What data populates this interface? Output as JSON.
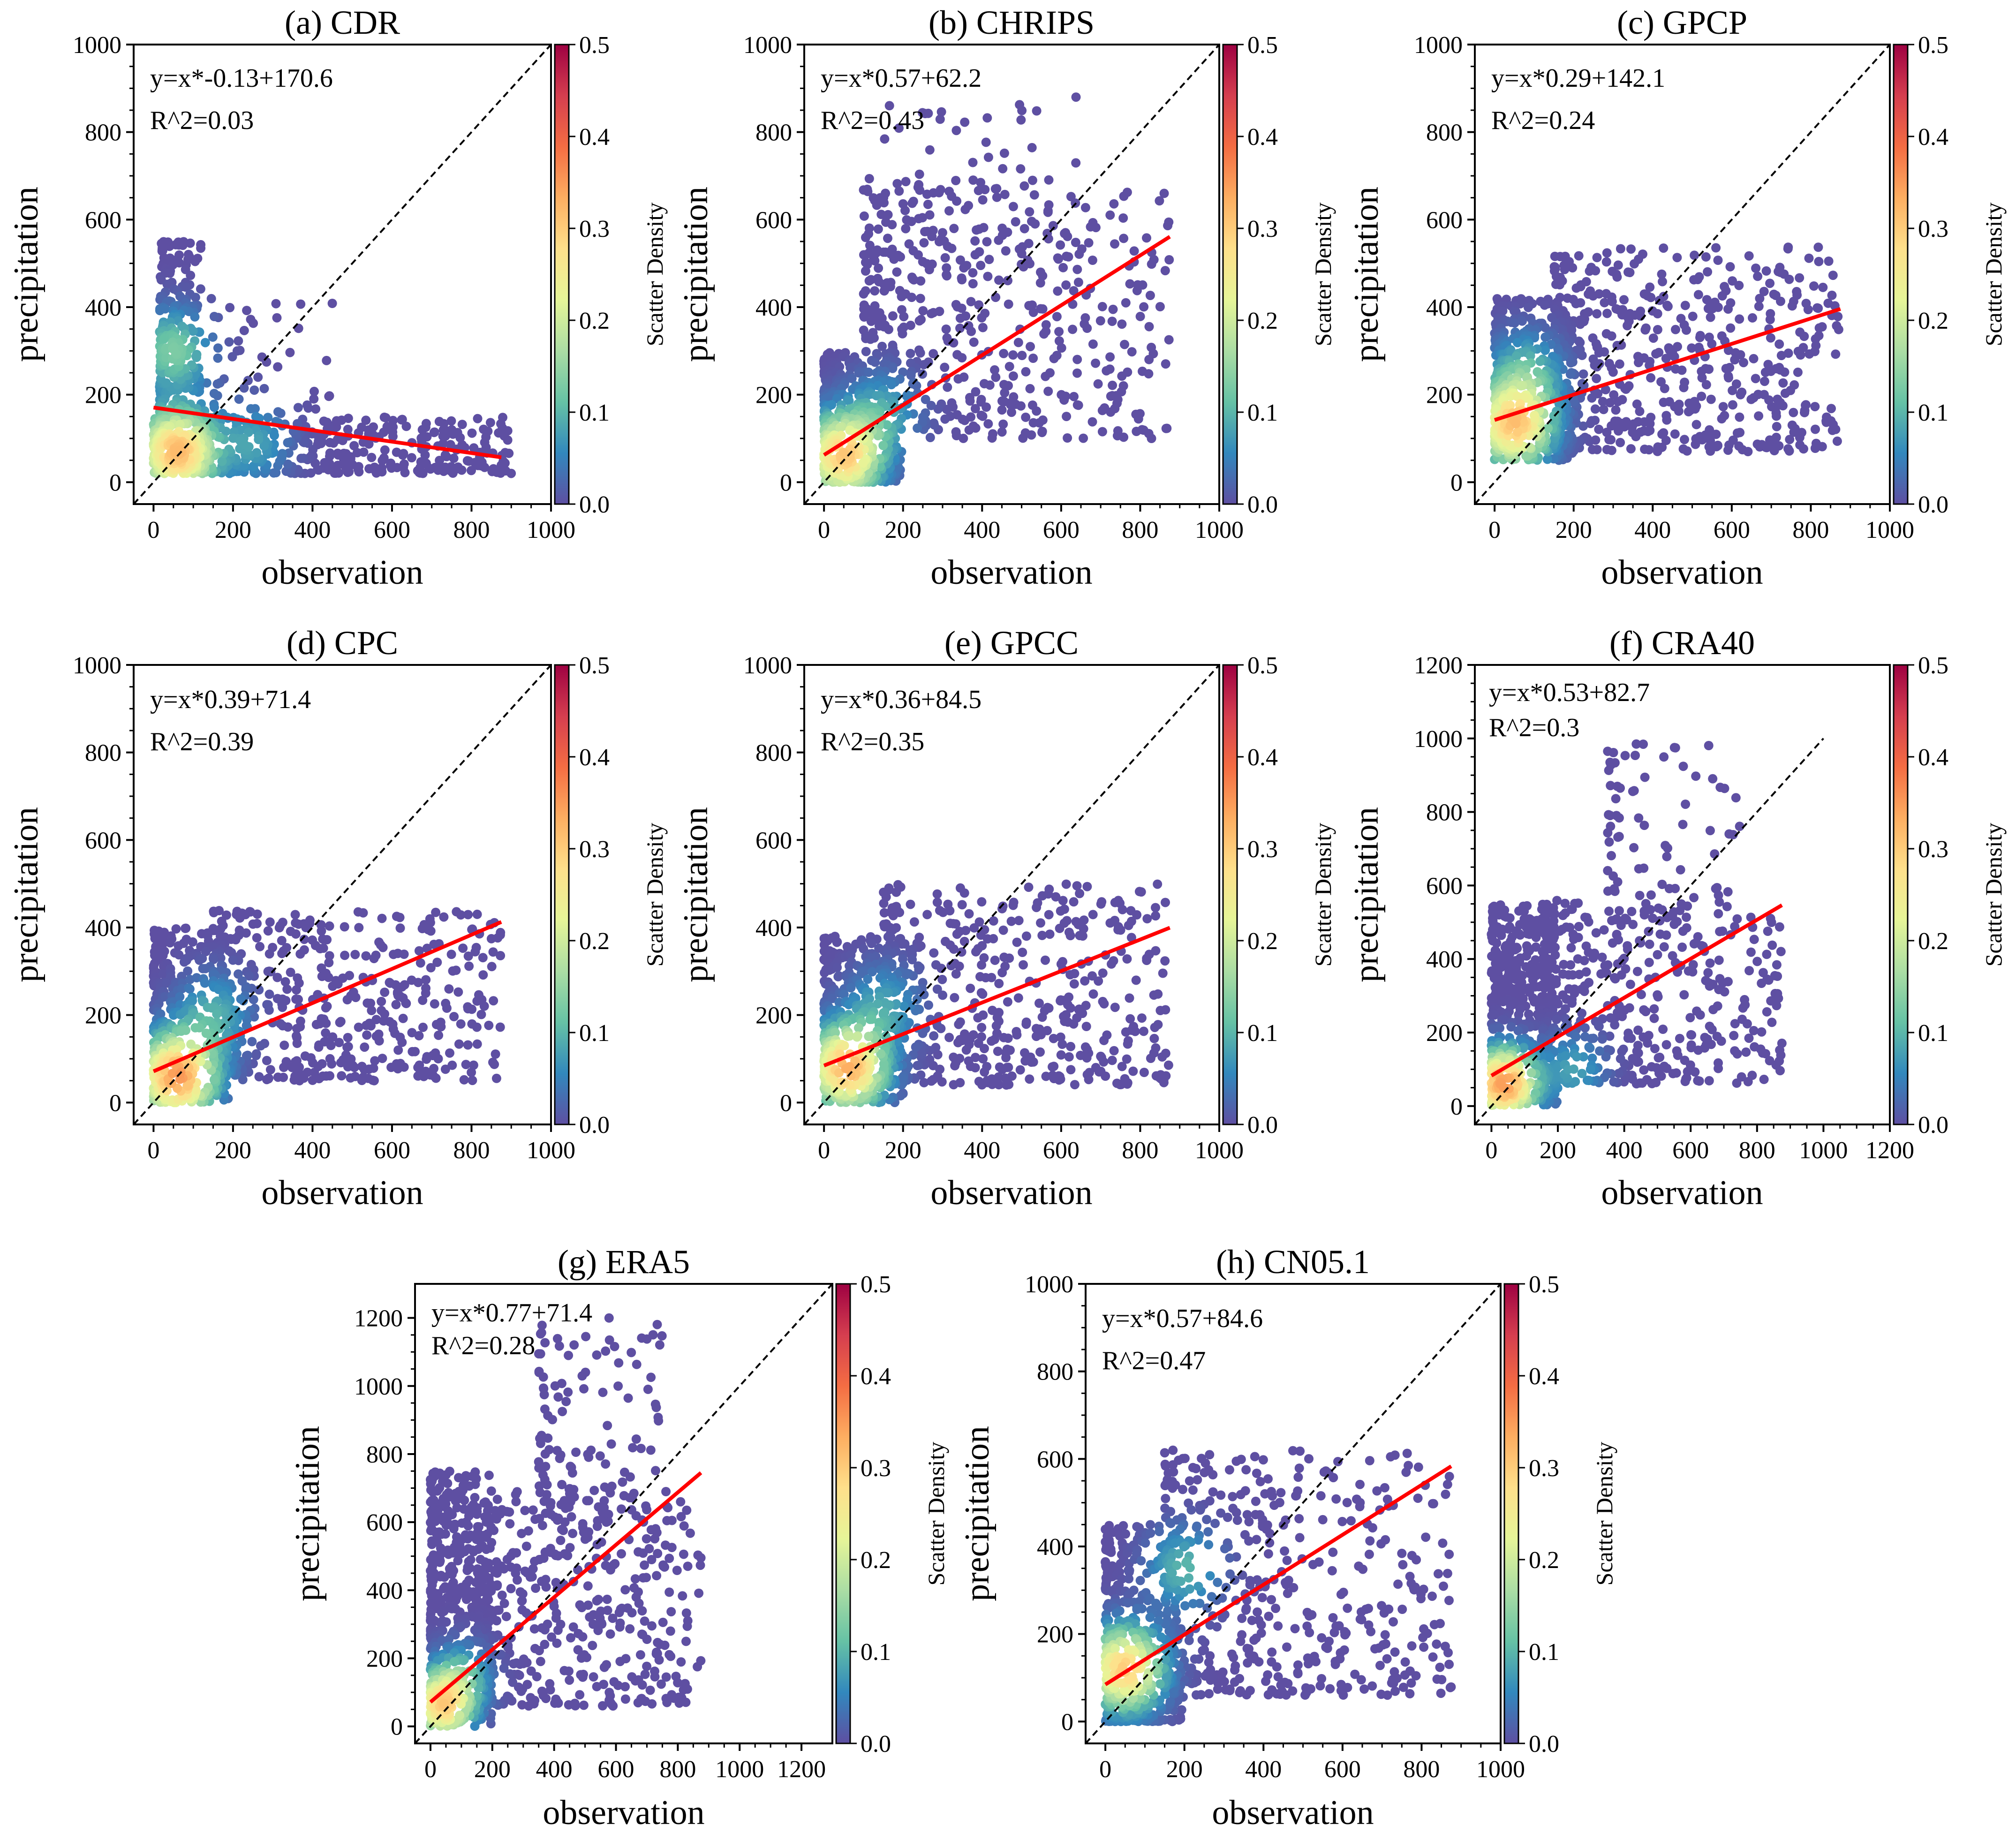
{
  "figure": {
    "colorbar_ticks": [
      "0.0",
      "0.1",
      "0.2",
      "0.3",
      "0.4",
      "0.5"
    ],
    "colorbar_label": "Scatter Density",
    "colormap_stops": [
      "#5e4fa2",
      "#3288bd",
      "#66c2a5",
      "#abdda4",
      "#e6f598",
      "#fee08b",
      "#fdae61",
      "#f46d43",
      "#d53e4f",
      "#9e0142"
    ],
    "point_color": "#5e4fa2",
    "fit_line_color": "#ff0000",
    "identity_line_color": "#000000"
  },
  "chart_data": [
    {
      "type": "scatter",
      "title": "(a) CDR",
      "xlabel": "observation",
      "ylabel": "precipitation",
      "xlim": [
        -50,
        1000
      ],
      "ylim": [
        -50,
        1000
      ],
      "xticks": [
        0,
        200,
        400,
        600,
        800,
        1000
      ],
      "yticks": [
        0,
        200,
        400,
        600,
        800,
        1000
      ],
      "identity_max": 1000,
      "annotation": [
        "y=x*-0.13+170.6",
        "R^2=0.03"
      ],
      "fit": {
        "slope": -0.13,
        "intercept": 170.6,
        "x_range": [
          0,
          875
        ]
      },
      "clusters": [
        {
          "x": [
            10,
            900
          ],
          "y": [
            20,
            150
          ],
          "n": 500
        },
        {
          "x": [
            15,
            120
          ],
          "y": [
            150,
            550
          ],
          "n": 250
        },
        {
          "x": [
            80,
            450
          ],
          "y": [
            150,
            420
          ],
          "n": 70
        },
        {
          "x": [
            0,
            150
          ],
          "y": [
            20,
            150
          ],
          "n": 200
        }
      ],
      "density_centers": [
        [
          60,
          70,
          0.32
        ],
        [
          50,
          300,
          0.13
        ],
        [
          250,
          90,
          0.08
        ]
      ]
    },
    {
      "type": "scatter",
      "title": "(b) CHRIPS",
      "xlabel": "observation",
      "ylabel": "precipitation",
      "xlim": [
        -50,
        1000
      ],
      "ylim": [
        -50,
        1000
      ],
      "xticks": [
        0,
        200,
        400,
        600,
        800,
        1000
      ],
      "yticks": [
        0,
        200,
        400,
        600,
        800,
        1000
      ],
      "identity_max": 1000,
      "annotation": [
        "y=x*0.57+62.2",
        "R^2=0.43"
      ],
      "fit": {
        "slope": 0.57,
        "intercept": 62.2,
        "x_range": [
          0,
          875
        ]
      },
      "clusters": [
        {
          "x": [
            0,
            200
          ],
          "y": [
            0,
            300
          ],
          "n": 450
        },
        {
          "x": [
            100,
            875
          ],
          "y": [
            100,
            700
          ],
          "n": 500
        },
        {
          "x": [
            150,
            700
          ],
          "y": [
            400,
            880
          ],
          "n": 70
        }
      ],
      "density_centers": [
        [
          50,
          60,
          0.3
        ],
        [
          150,
          160,
          0.08
        ]
      ]
    },
    {
      "type": "scatter",
      "title": "(c) GPCP",
      "xlabel": "observation",
      "ylabel": "precipitation",
      "xlim": [
        -50,
        1000
      ],
      "ylim": [
        -50,
        1000
      ],
      "xticks": [
        0,
        200,
        400,
        600,
        800,
        1000
      ],
      "yticks": [
        0,
        200,
        400,
        600,
        800,
        1000
      ],
      "identity_max": 1000,
      "annotation": [
        "y=x*0.29+142.1",
        "R^2=0.24"
      ],
      "fit": {
        "slope": 0.29,
        "intercept": 142.1,
        "x_range": [
          0,
          875
        ]
      },
      "clusters": [
        {
          "x": [
            0,
            200
          ],
          "y": [
            50,
            420
          ],
          "n": 500
        },
        {
          "x": [
            150,
            875
          ],
          "y": [
            70,
            540
          ],
          "n": 550
        }
      ],
      "density_centers": [
        [
          50,
          130,
          0.3
        ],
        [
          80,
          250,
          0.1
        ]
      ]
    },
    {
      "type": "scatter",
      "title": "(d) CPC",
      "xlabel": "observation",
      "ylabel": "precipitation",
      "xlim": [
        -50,
        1000
      ],
      "ylim": [
        -50,
        1000
      ],
      "xticks": [
        0,
        200,
        400,
        600,
        800,
        1000
      ],
      "yticks": [
        0,
        200,
        400,
        600,
        800,
        1000
      ],
      "identity_max": 1000,
      "annotation": [
        "y=x*0.39+71.4",
        "R^2=0.39"
      ],
      "fit": {
        "slope": 0.39,
        "intercept": 71.4,
        "x_range": [
          0,
          875
        ]
      },
      "clusters": [
        {
          "x": [
            0,
            200
          ],
          "y": [
            0,
            400
          ],
          "n": 450
        },
        {
          "x": [
            150,
            875
          ],
          "y": [
            50,
            440
          ],
          "n": 500
        }
      ],
      "density_centers": [
        [
          60,
          60,
          0.35
        ],
        [
          150,
          200,
          0.09
        ]
      ]
    },
    {
      "type": "scatter",
      "title": "(e) GPCC",
      "xlabel": "observation",
      "ylabel": "precipitation",
      "xlim": [
        -50,
        1000
      ],
      "ylim": [
        -50,
        1000
      ],
      "xticks": [
        0,
        200,
        400,
        600,
        800,
        1000
      ],
      "yticks": [
        0,
        200,
        400,
        600,
        800,
        1000
      ],
      "identity_max": 1000,
      "annotation": [
        "y=x*0.36+84.5",
        "R^2=0.35"
      ],
      "fit": {
        "slope": 0.36,
        "intercept": 84.5,
        "x_range": [
          0,
          875
        ]
      },
      "clusters": [
        {
          "x": [
            0,
            200
          ],
          "y": [
            0,
            380
          ],
          "n": 450
        },
        {
          "x": [
            150,
            875
          ],
          "y": [
            40,
            500
          ],
          "n": 520
        }
      ],
      "density_centers": [
        [
          60,
          80,
          0.33
        ],
        [
          150,
          220,
          0.08
        ]
      ]
    },
    {
      "type": "scatter",
      "title": "(f) CRA40",
      "xlabel": "observation",
      "ylabel": "precipitation",
      "xlim": [
        -50,
        1200
      ],
      "ylim": [
        -50,
        1200
      ],
      "xticks": [
        0,
        200,
        400,
        600,
        800,
        1000,
        1200
      ],
      "yticks": [
        0,
        200,
        400,
        600,
        800,
        1000,
        1200
      ],
      "identity_max": 1000,
      "annotation": [
        "y=x*0.53+82.7",
        "R^2=0.3"
      ],
      "fit": {
        "slope": 0.53,
        "intercept": 82.7,
        "x_range": [
          0,
          875
        ]
      },
      "clusters": [
        {
          "x": [
            0,
            200
          ],
          "y": [
            0,
            550
          ],
          "n": 500
        },
        {
          "x": [
            150,
            875
          ],
          "y": [
            60,
            560
          ],
          "n": 450
        },
        {
          "x": [
            350,
            750
          ],
          "y": [
            500,
            1000
          ],
          "n": 80
        }
      ],
      "density_centers": [
        [
          40,
          60,
          0.35
        ],
        [
          250,
          100,
          0.08
        ]
      ]
    },
    {
      "type": "scatter",
      "title": "(g) ERA5",
      "xlabel": "observation",
      "ylabel": "precipitation",
      "xlim": [
        -50,
        1300
      ],
      "ylim": [
        -50,
        1300
      ],
      "xticks": [
        0,
        200,
        400,
        600,
        800,
        1000,
        1200
      ],
      "yticks": [
        0,
        200,
        400,
        600,
        800,
        1000,
        1200
      ],
      "identity_max": 1300,
      "annotation": [
        "y=x*0.77+71.4",
        "R^2=0.28"
      ],
      "fit": {
        "slope": 0.77,
        "intercept": 71.4,
        "x_range": [
          0,
          875
        ]
      },
      "clusters": [
        {
          "x": [
            0,
            200
          ],
          "y": [
            0,
            750
          ],
          "n": 550
        },
        {
          "x": [
            150,
            875
          ],
          "y": [
            60,
            700
          ],
          "n": 450
        },
        {
          "x": [
            350,
            750
          ],
          "y": [
            600,
            1200
          ],
          "n": 110
        }
      ],
      "density_centers": [
        [
          40,
          60,
          0.28
        ],
        [
          100,
          150,
          0.1
        ]
      ]
    },
    {
      "type": "scatter",
      "title": "(h) CN05.1",
      "xlabel": "observation",
      "ylabel": "precipitation",
      "xlim": [
        -50,
        1000
      ],
      "ylim": [
        -50,
        1000
      ],
      "xticks": [
        0,
        200,
        400,
        600,
        800,
        1000
      ],
      "yticks": [
        0,
        200,
        400,
        600,
        800,
        1000
      ],
      "identity_max": 1000,
      "annotation": [
        "y=x*0.57+84.6",
        "R^2=0.47"
      ],
      "fit": {
        "slope": 0.57,
        "intercept": 84.6,
        "x_range": [
          0,
          875
        ]
      },
      "clusters": [
        {
          "x": [
            0,
            200
          ],
          "y": [
            0,
            450
          ],
          "n": 450
        },
        {
          "x": [
            150,
            875
          ],
          "y": [
            60,
            620
          ],
          "n": 500
        },
        {
          "x": [
            0,
            200
          ],
          "y": [
            0,
            5
          ],
          "n": 40
        }
      ],
      "density_centers": [
        [
          50,
          120,
          0.3
        ],
        [
          200,
          350,
          0.1
        ]
      ]
    }
  ]
}
